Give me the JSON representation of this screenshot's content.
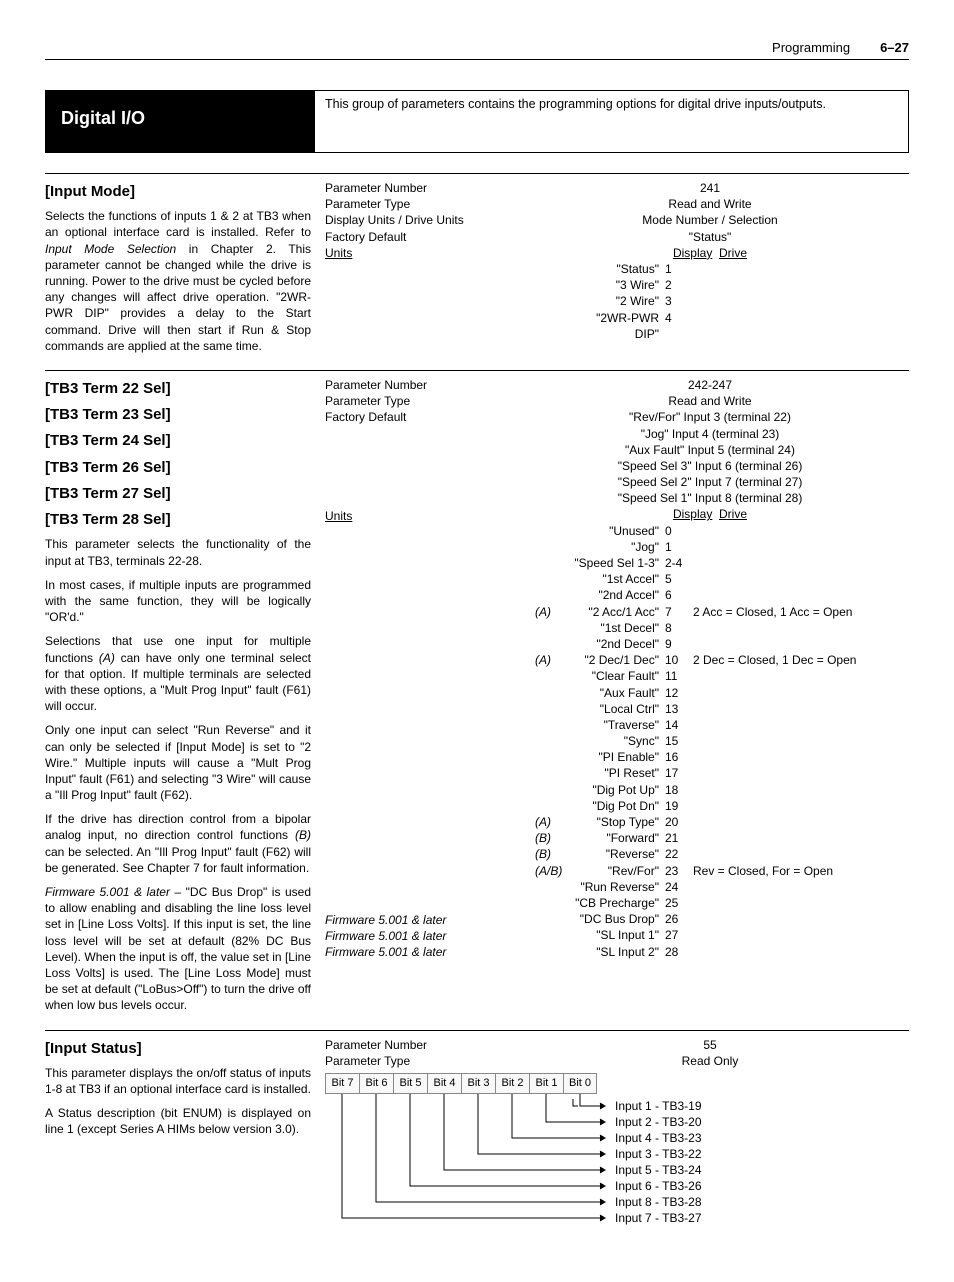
{
  "header": {
    "chapter": "Programming",
    "pagenum": "6–27"
  },
  "band": {
    "title": "Digital I/O",
    "caption": "This group of parameters contains the programming options for digital drive inputs/outputs."
  },
  "input_mode": {
    "title": "[Input Mode]",
    "desc": "Selects the functions of inputs 1 & 2 at TB3 when an optional interface card is installed. Refer to Input Mode Selection in Chapter 2. This parameter cannot be changed while the drive is running. Power to the drive must be cycled before any changes will affect drive operation. \"2WR-PWR DIP\" provides a delay to the Start command. Drive will then start if Run & Stop commands are applied at the same time.",
    "labels": {
      "pn": "Parameter Number",
      "pt": "Parameter Type",
      "du": "Display Units / Drive Units",
      "fd": "Factory Default",
      "un": "Units"
    },
    "vals": {
      "pn": "241",
      "pt": "Read and Write",
      "du": "Mode Number / Selection",
      "fd": "\"Status\"",
      "un_hdr": {
        "d": "Display",
        "r": "Drive"
      },
      "units": [
        {
          "name": "\"Status\"",
          "num": "1"
        },
        {
          "name": "\"3 Wire\"",
          "num": "2"
        },
        {
          "name": "\"2 Wire\"",
          "num": "3"
        },
        {
          "name": "\"2WR-PWR DIP\"",
          "num": "4"
        }
      ]
    }
  },
  "tb3": {
    "titles": [
      "[TB3 Term 22 Sel]",
      "[TB3 Term 23 Sel]",
      "[TB3 Term 24 Sel]",
      "[TB3 Term 26 Sel]",
      "[TB3 Term 27 Sel]",
      "[TB3 Term 28 Sel]"
    ],
    "p1": "This parameter selects the functionality of the input at TB3, terminals 22-28.",
    "p2": "In most cases, if multiple inputs are programmed with the same function, they will be logically \"OR'd.\"",
    "p3a": "Selections that use one input for multiple functions ",
    "p3b": "(A)",
    "p3c": " can have only one terminal select for that option. If multiple terminals are selected with these options, a \"Mult Prog Input\" fault (F61) will occur.",
    "p4": "Only one input can select \"Run Reverse\" and it can only be selected if [Input Mode] is set to \"2 Wire.\" Multiple inputs will cause a \"Mult Prog Input\" fault (F61) and selecting \"3 Wire\" will cause a \"Ill Prog Input\" fault (F62).",
    "p5a": "If the drive has direction control from a bipolar analog input, no direction control functions ",
    "p5b": "(B)",
    "p5c": " can be selected. An \"Ill Prog Input\" fault (F62) will be generated. See Chapter 7 for fault information.",
    "p6a": "Firmware 5.001 & later",
    "p6b": " – \"DC Bus Drop\" is used to allow enabling and disabling the line loss level set in [Line Loss Volts]. If this input is set, the line loss level will be set at default (82% DC Bus Level). When the input is off, the value set in [Line Loss Volts] is used. The [Line Loss Mode] must be set at default (\"LoBus>Off\") to turn the drive off when low bus levels occur.",
    "labels": {
      "pn": "Parameter Number",
      "pt": "Parameter Type",
      "fd": "Factory Default",
      "un": "Units"
    },
    "vals": {
      "pn": "242-247",
      "pt": "Read and Write",
      "fd": [
        "\"Rev/For\" Input 3 (terminal 22)",
        "\"Jog\" Input 4 (terminal 23)",
        "\"Aux Fault\" Input 5 (terminal 24)",
        "\"Speed Sel 3\" Input 6 (terminal 26)",
        "\"Speed Sel 2\" Input 7 (terminal 27)",
        "\"Speed Sel 1\" Input 8 (terminal 28)"
      ],
      "un_hdr": {
        "d": "Display",
        "r": "Drive"
      },
      "units": [
        {
          "tag": "",
          "name": "\"Unused\"",
          "num": "0",
          "extra": ""
        },
        {
          "tag": "",
          "name": "\"Jog\"",
          "num": "1",
          "extra": ""
        },
        {
          "tag": "",
          "name": "\"Speed Sel 1-3\"",
          "num": "2-4",
          "extra": ""
        },
        {
          "tag": "",
          "name": "\"1st Accel\"",
          "num": "5",
          "extra": ""
        },
        {
          "tag": "",
          "name": "\"2nd Accel\"",
          "num": "6",
          "extra": ""
        },
        {
          "tag": "(A)",
          "name": "\"2 Acc/1 Acc\"",
          "num": "7",
          "extra": "2 Acc = Closed, 1 Acc = Open"
        },
        {
          "tag": "",
          "name": "\"1st Decel\"",
          "num": "8",
          "extra": ""
        },
        {
          "tag": "",
          "name": "\"2nd Decel\"",
          "num": "9",
          "extra": ""
        },
        {
          "tag": "(A)",
          "name": "\"2 Dec/1 Dec\"",
          "num": "10",
          "extra": "2 Dec = Closed, 1 Dec = Open"
        },
        {
          "tag": "",
          "name": "\"Clear Fault\"",
          "num": "11",
          "extra": ""
        },
        {
          "tag": "",
          "name": "\"Aux Fault\"",
          "num": "12",
          "extra": ""
        },
        {
          "tag": "",
          "name": "\"Local Ctrl\"",
          "num": "13",
          "extra": ""
        },
        {
          "tag": "",
          "name": "\"Traverse\"",
          "num": "14",
          "extra": ""
        },
        {
          "tag": "",
          "name": "\"Sync\"",
          "num": "15",
          "extra": ""
        },
        {
          "tag": "",
          "name": "\"PI Enable\"",
          "num": "16",
          "extra": ""
        },
        {
          "tag": "",
          "name": "\"PI Reset\"",
          "num": "17",
          "extra": ""
        },
        {
          "tag": "",
          "name": "\"Dig Pot Up\"",
          "num": "18",
          "extra": ""
        },
        {
          "tag": "",
          "name": "\"Dig Pot Dn\"",
          "num": "19",
          "extra": ""
        },
        {
          "tag": "(A)",
          "name": "\"Stop Type\"",
          "num": "20",
          "extra": ""
        },
        {
          "tag": "(B)",
          "name": "\"Forward\"",
          "num": "21",
          "extra": ""
        },
        {
          "tag": "(B)",
          "name": "\"Reverse\"",
          "num": "22",
          "extra": ""
        },
        {
          "tag": "(A/B)",
          "name": "\"Rev/For\"",
          "num": "23",
          "extra": "Rev = Closed, For = Open"
        },
        {
          "tag": "",
          "name": "\"Run Reverse\"",
          "num": "24",
          "extra": ""
        },
        {
          "tag": "",
          "name": "\"CB Precharge\"",
          "num": "25",
          "extra": ""
        },
        {
          "tag": "",
          "name": "\"DC Bus Drop\"",
          "num": "26",
          "extra": ""
        },
        {
          "tag": "",
          "name": "\"SL Input 1\"",
          "num": "27",
          "extra": ""
        },
        {
          "tag": "",
          "name": "\"SL Input 2\"",
          "num": "28",
          "extra": ""
        }
      ]
    },
    "fw_notes": [
      "Firmware 5.001 & later",
      "Firmware 5.001 & later",
      "Firmware 5.001 & later"
    ]
  },
  "input_status": {
    "title": "[Input Status]",
    "p1": "This parameter displays the on/off status of inputs 1-8 at TB3 if an optional interface card is installed.",
    "p2": "A Status description (bit ENUM) is displayed on line 1 (except Series A HIMs below version 3.0).",
    "labels": {
      "pn": "Parameter Number",
      "pt": "Parameter Type"
    },
    "vals": {
      "pn": "55",
      "pt": "Read Only"
    },
    "bits": [
      "Bit 7",
      "Bit 6",
      "Bit 5",
      "Bit 4",
      "Bit 3",
      "Bit 2",
      "Bit 1",
      "Bit 0"
    ],
    "inputs": [
      "Input 1 - TB3-19",
      "Input 2 - TB3-20",
      "Input 4 - TB3-23",
      "Input 3 - TB3-22",
      "Input 5 - TB3-24",
      "Input 6 - TB3-26",
      "Input 8 - TB3-28",
      "Input 7 - TB3-27"
    ]
  }
}
